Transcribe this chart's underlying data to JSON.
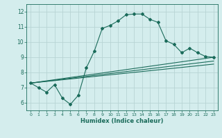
{
  "title": "",
  "xlabel": "Humidex (Indice chaleur)",
  "background_color": "#d4eded",
  "grid_color": "#b8d4d4",
  "line_color": "#1a6b5a",
  "xlim": [
    -0.5,
    23.5
  ],
  "ylim": [
    5.5,
    12.5
  ],
  "xticks": [
    0,
    1,
    2,
    3,
    4,
    5,
    6,
    7,
    8,
    9,
    10,
    11,
    12,
    13,
    14,
    15,
    16,
    17,
    18,
    19,
    20,
    21,
    22,
    23
  ],
  "yticks": [
    6,
    7,
    8,
    9,
    10,
    11,
    12
  ],
  "series1_x": [
    0,
    1,
    2,
    3,
    4,
    5,
    6,
    7,
    8,
    9,
    10,
    11,
    12,
    13,
    14,
    15,
    16,
    17,
    18,
    19,
    20,
    21,
    22,
    23
  ],
  "series1_y": [
    7.3,
    7.0,
    6.7,
    7.2,
    6.3,
    5.9,
    6.5,
    8.3,
    9.4,
    10.9,
    11.1,
    11.4,
    11.8,
    11.85,
    11.85,
    11.5,
    11.3,
    10.1,
    9.85,
    9.3,
    9.6,
    9.3,
    9.05,
    9.0
  ],
  "series2_x": [
    0,
    23
  ],
  "series2_y": [
    7.3,
    9.0
  ],
  "series3_x": [
    0,
    23
  ],
  "series3_y": [
    7.3,
    8.75
  ],
  "series4_x": [
    0,
    23
  ],
  "series4_y": [
    7.3,
    8.55
  ]
}
